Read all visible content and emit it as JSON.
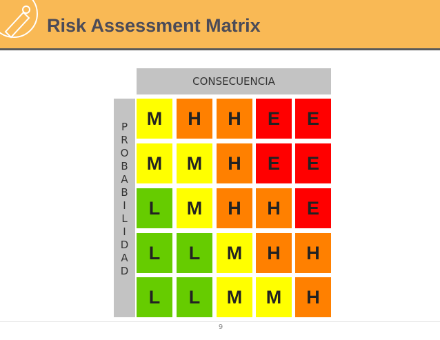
{
  "header": {
    "title": "Risk Assessment Matrix"
  },
  "matrix": {
    "column_header": "CONSECUENCIA",
    "row_header": "PROBABILIDAD",
    "level_colors": {
      "L": "#66cc00",
      "M": "#ffff00",
      "H": "#ff8000",
      "E": "#ff0000"
    },
    "rows": [
      [
        "M",
        "H",
        "H",
        "E",
        "E"
      ],
      [
        "M",
        "M",
        "H",
        "E",
        "E"
      ],
      [
        "L",
        "M",
        "H",
        "H",
        "E"
      ],
      [
        "L",
        "L",
        "M",
        "H",
        "H"
      ],
      [
        "L",
        "L",
        "M",
        "M",
        "H"
      ]
    ]
  },
  "footer": {
    "page_number": "9"
  }
}
